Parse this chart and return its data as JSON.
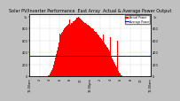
{
  "title": "Solar PV/Inverter Performance  East Array  Actual & Average Power Output",
  "bg_color": "#c0c0c0",
  "plot_bg": "#ffffff",
  "bar_color": "#ff0000",
  "avg_line_color": "#0000ff",
  "avg_line_value": 0.35,
  "ylim": [
    0,
    1.05
  ],
  "xlim": [
    0,
    144
  ],
  "title_color": "#000000",
  "title_fontsize": 3.5,
  "tick_fontsize": 2.5,
  "legend_labels": [
    "Actual Power",
    "Average Power"
  ],
  "legend_colors": [
    "#ff0000",
    "#0000ff"
  ],
  "bar_data": [
    0.0,
    0.0,
    0.0,
    0.0,
    0.0,
    0.0,
    0.0,
    0.0,
    0.0,
    0.0,
    0.0,
    0.0,
    0.0,
    0.0,
    0.0,
    0.0,
    0.0,
    0.0,
    0.0,
    0.0,
    0.0,
    0.0,
    0.01,
    0.02,
    0.04,
    0.07,
    0.1,
    0.14,
    0.19,
    0.25,
    0.31,
    0.38,
    0.44,
    0.5,
    0.56,
    0.72,
    0.65,
    0.7,
    0.73,
    0.75,
    0.78,
    0.8,
    0.82,
    0.84,
    0.85,
    0.87,
    0.88,
    0.96,
    0.87,
    0.89,
    0.9,
    0.92,
    0.93,
    0.94,
    0.96,
    0.97,
    0.98,
    0.99,
    1.0,
    0.98,
    0.97,
    0.95,
    0.94,
    0.92,
    0.91,
    0.9,
    0.89,
    0.88,
    0.87,
    0.86,
    0.85,
    0.84,
    0.82,
    0.81,
    0.8,
    0.79,
    0.78,
    0.76,
    0.75,
    0.74,
    0.72,
    0.7,
    0.68,
    0.66,
    0.64,
    0.62,
    0.6,
    0.7,
    0.56,
    0.54,
    0.52,
    0.5,
    0.48,
    0.45,
    0.42,
    0.39,
    0.65,
    0.33,
    0.3,
    0.27,
    0.24,
    0.21,
    0.18,
    0.15,
    0.6,
    0.09,
    0.06,
    0.04,
    0.02,
    0.01,
    0.0,
    0.0,
    0.0,
    0.0,
    0.0,
    0.0,
    0.0,
    0.0,
    0.0,
    0.0,
    0.0,
    0.0,
    0.0,
    0.0,
    0.0,
    0.0,
    0.0,
    0.0,
    0.0,
    0.0,
    0.0,
    0.0,
    0.0,
    0.0,
    0.0,
    0.0,
    0.0,
    0.0,
    0.0,
    0.0,
    0.0,
    0.0,
    0.0,
    0.0
  ],
  "xtick_positions": [
    0,
    12,
    24,
    36,
    48,
    60,
    72,
    84,
    96,
    108,
    120,
    132,
    144
  ],
  "xtick_labels": [
    "12:00am",
    "2",
    "4",
    "6",
    "8",
    "10",
    "12:00pm",
    "2",
    "4",
    "6",
    "8",
    "10",
    "12:00am"
  ],
  "ytick_positions": [
    0.0,
    0.2,
    0.4,
    0.6,
    0.8,
    1.0
  ],
  "ytick_labels": [
    "0",
    "200",
    "400",
    "600",
    "800",
    "1k"
  ]
}
